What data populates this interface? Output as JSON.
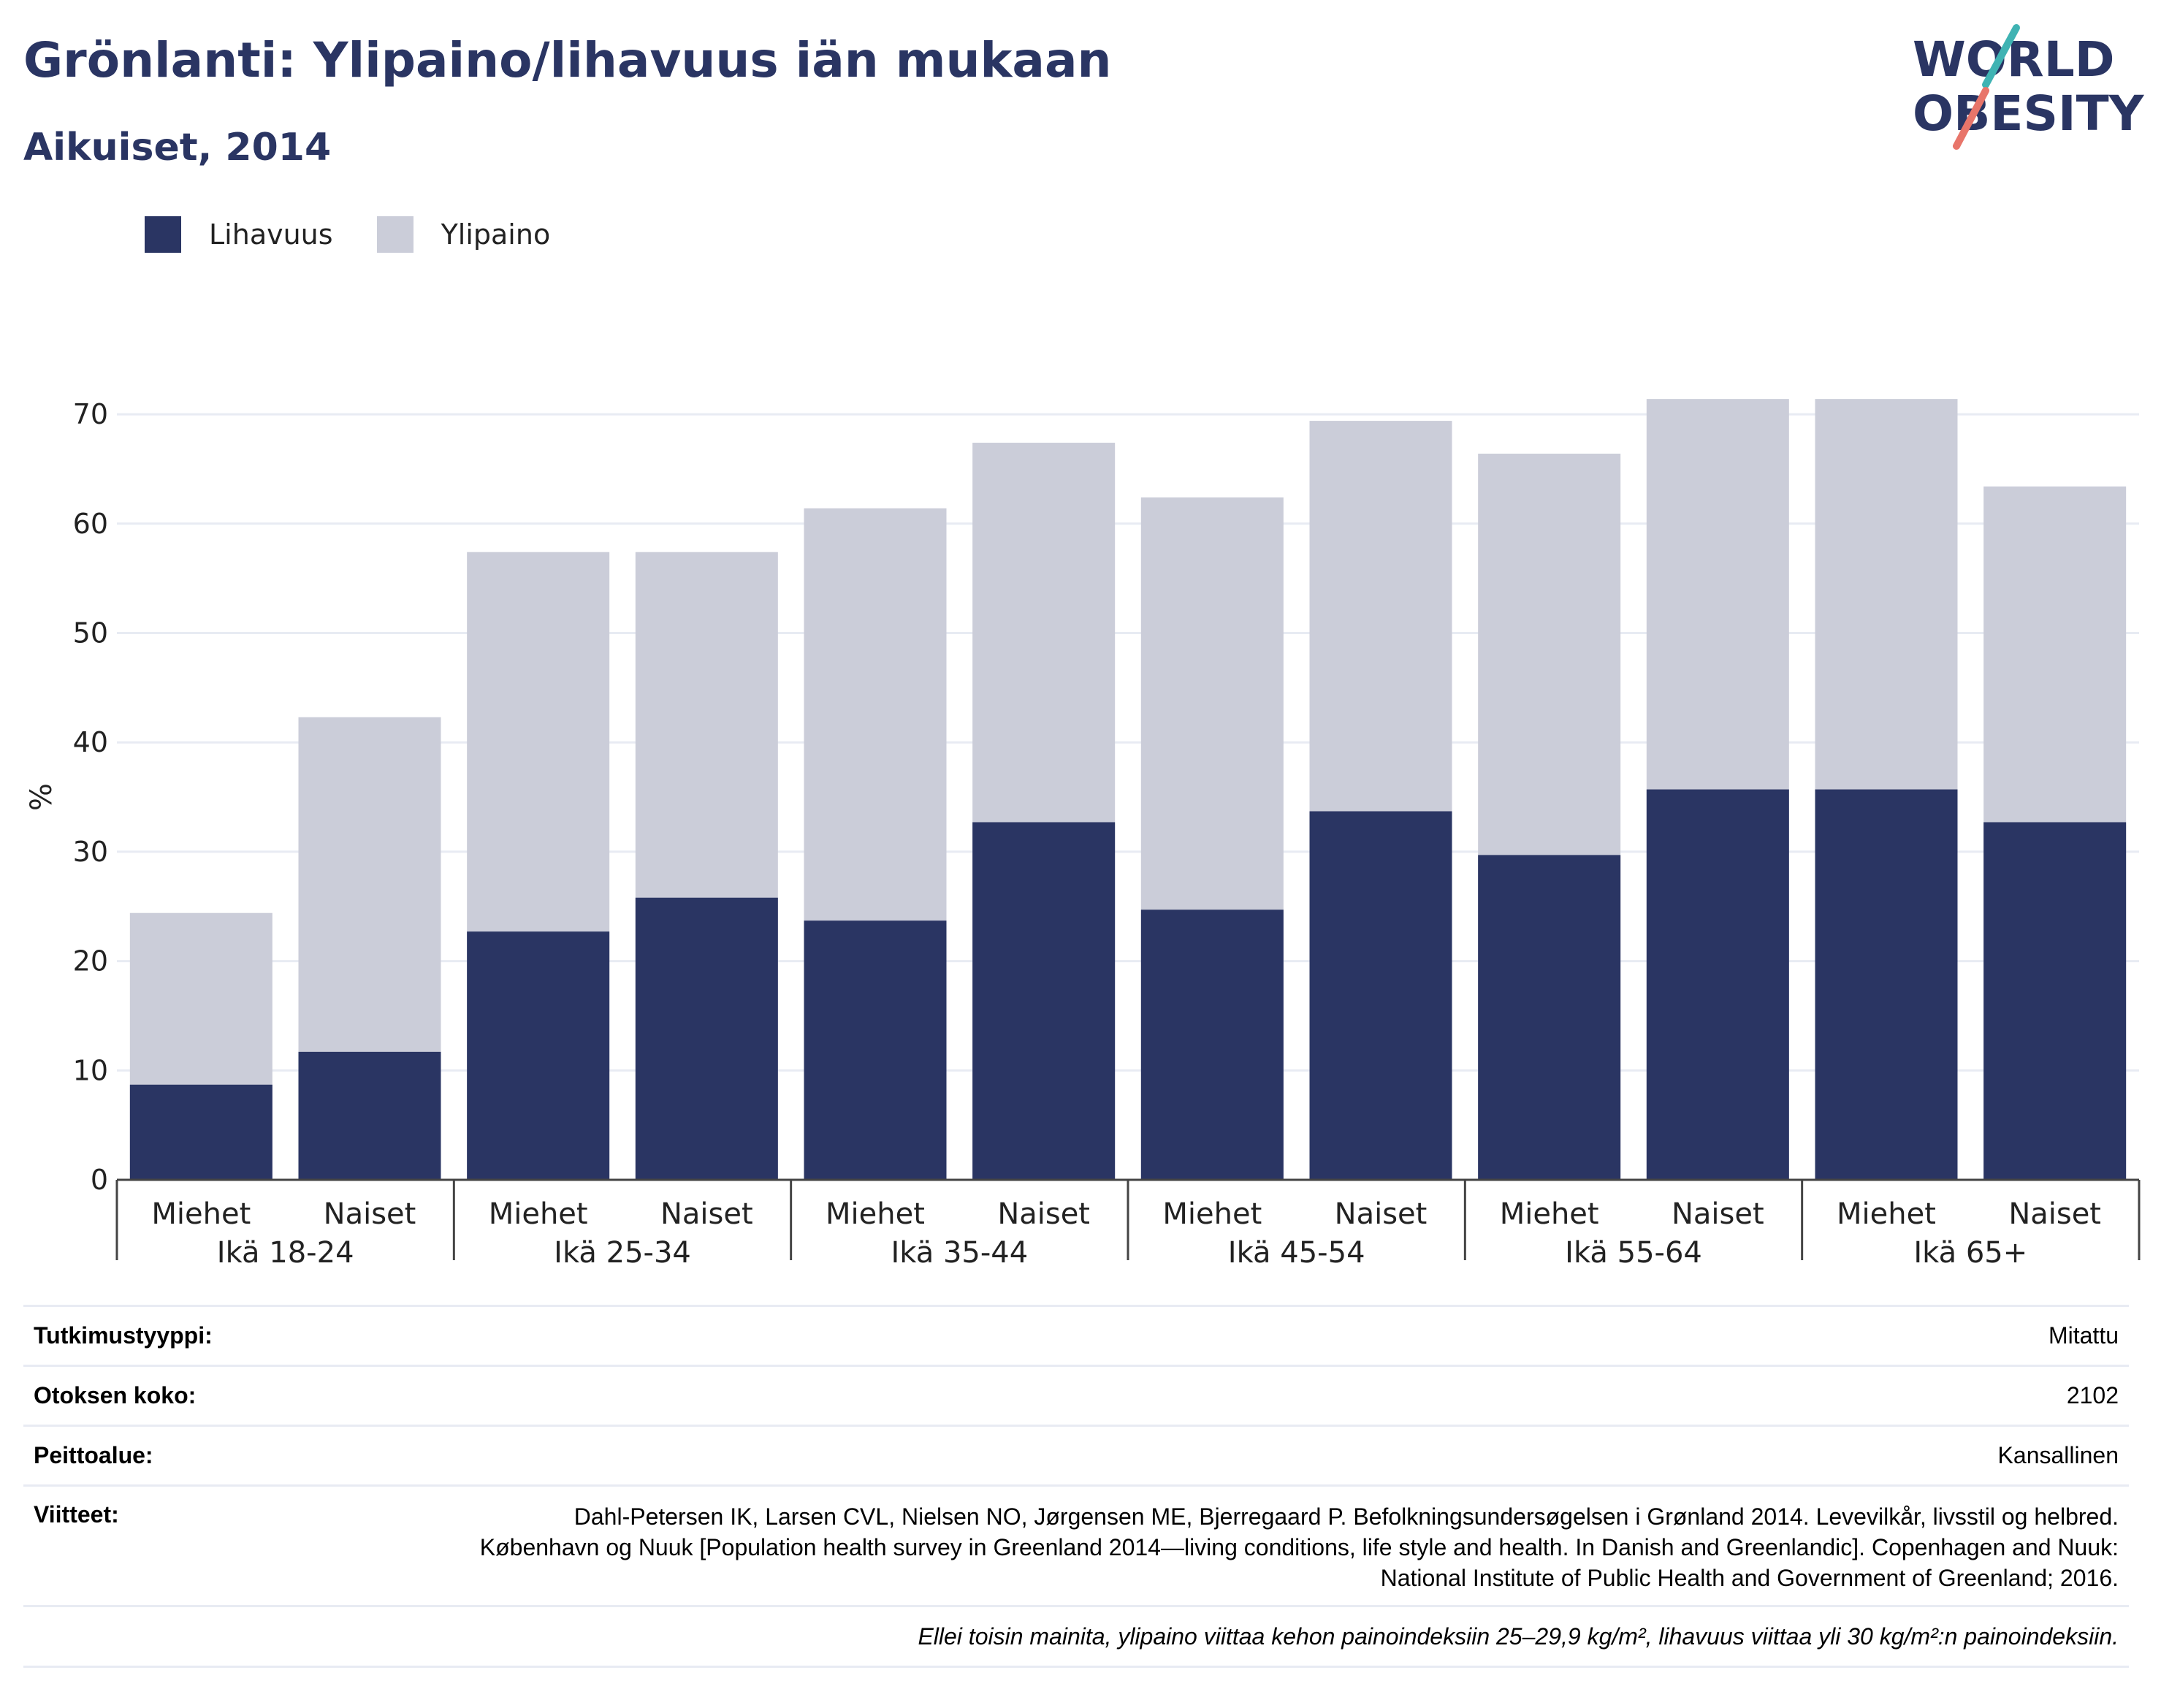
{
  "header": {
    "title": "Grönlanti: Ylipaino/lihavuus iän mukaan",
    "subtitle": "Aikuiset, 2014"
  },
  "logo": {
    "line1": "WORLD",
    "line2": "OBESITY"
  },
  "legend": [
    {
      "label": "Lihavuus",
      "color": "#2a3563"
    },
    {
      "label": "Ylipaino",
      "color": "#cbcdd9"
    }
  ],
  "chart_data": {
    "type": "bar",
    "stacking": "overlay",
    "ylabel": "%",
    "ylim": [
      0,
      70
    ],
    "yticks": [
      0,
      10,
      20,
      30,
      40,
      50,
      60,
      70
    ],
    "grid": true,
    "legend_position": "top-left",
    "groups": [
      {
        "label": "Ikä 18-24",
        "bars": [
          {
            "label": "Miehet",
            "lihavuus": 8.7,
            "ylipaino": 24.4
          },
          {
            "label": "Naiset",
            "lihavuus": 11.7,
            "ylipaino": 42.3
          }
        ]
      },
      {
        "label": "Ikä 25-34",
        "bars": [
          {
            "label": "Miehet",
            "lihavuus": 22.7,
            "ylipaino": 57.4
          },
          {
            "label": "Naiset",
            "lihavuus": 25.8,
            "ylipaino": 57.4
          }
        ]
      },
      {
        "label": "Ikä 35-44",
        "bars": [
          {
            "label": "Miehet",
            "lihavuus": 23.7,
            "ylipaino": 61.4
          },
          {
            "label": "Naiset",
            "lihavuus": 32.7,
            "ylipaino": 67.4
          }
        ]
      },
      {
        "label": "Ikä 45-54",
        "bars": [
          {
            "label": "Miehet",
            "lihavuus": 24.7,
            "ylipaino": 62.4
          },
          {
            "label": "Naiset",
            "lihavuus": 33.7,
            "ylipaino": 69.4
          }
        ]
      },
      {
        "label": "Ikä 55-64",
        "bars": [
          {
            "label": "Miehet",
            "lihavuus": 29.7,
            "ylipaino": 66.4
          },
          {
            "label": "Naiset",
            "lihavuus": 35.7,
            "ylipaino": 71.4
          }
        ]
      },
      {
        "label": "Ikä 65+",
        "bars": [
          {
            "label": "Miehet",
            "lihavuus": 35.7,
            "ylipaino": 71.4
          },
          {
            "label": "Naiset",
            "lihavuus": 32.7,
            "ylipaino": 63.4
          }
        ]
      }
    ],
    "colors": {
      "lihavuus": "#2a3563",
      "ylipaino": "#cbcdd9"
    }
  },
  "info": {
    "study_type_label": "Tutkimustyyppi:",
    "study_type_value": "Mitattu",
    "sample_size_label": "Otoksen koko:",
    "sample_size_value": "2102",
    "coverage_label": "Peittoalue:",
    "coverage_value": "Kansallinen",
    "references_label": "Viitteet:",
    "references_value": "Dahl-Petersen IK, Larsen CVL, Nielsen NO, Jørgensen ME, Bjerregaard P. Befolkningsundersøgelsen i Grønland 2014. Levevilkår, livsstil og helbred. København og Nuuk [Population health survey in Greenland 2014—living conditions, life style and health. In Danish and Greenlandic]. Copenhagen and Nuuk: National Institute of Public Health and Government of Greenland; 2016.",
    "note": "Ellei toisin mainita, ylipaino viittaa kehon painoindeksiin 25–29,9 kg/m², lihavuus viittaa yli 30 kg/m²:n painoindeksiin."
  }
}
